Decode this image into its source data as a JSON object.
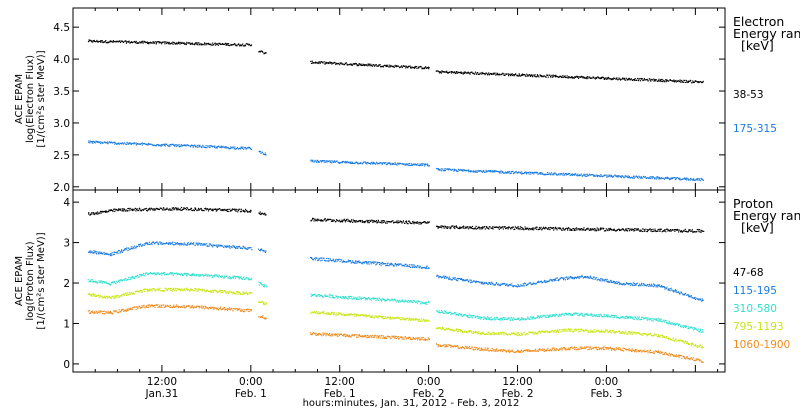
{
  "chart_data": {
    "type": "scatter",
    "xlabel": "hours:minutes, Jan. 31, 2012 - Feb.  3, 2012",
    "x_ticks": [
      {
        "top": "12:00",
        "bottom": "Jan.31",
        "hour": 12
      },
      {
        "top": "0:00",
        "bottom": "Feb. 1",
        "hour": 24
      },
      {
        "top": "12:00",
        "bottom": "Feb. 1",
        "hour": 36
      },
      {
        "top": "0:00",
        "bottom": "Feb. 2",
        "hour": 48
      },
      {
        "top": "12:00",
        "bottom": "Feb. 2",
        "hour": 60
      },
      {
        "top": "0:00",
        "bottom": "Feb. 3",
        "hour": 72
      }
    ],
    "xlim_hours": [
      0,
      88
    ],
    "panels": [
      {
        "id": "electron",
        "ylabel": [
          "ACE EPAM",
          "log(Electron Flux)",
          "[1/(cm²s ster MeV)]"
        ],
        "ylim": [
          1.95,
          4.8
        ],
        "yticks": [
          2.0,
          2.5,
          3.0,
          3.5,
          4.0,
          4.5
        ],
        "ytick_labels": [
          "2.0",
          "2.5",
          "3.0",
          "3.5",
          "4.0",
          "4.5"
        ],
        "legend_title": [
          "Electron",
          "Energy ranges",
          "[keV]"
        ],
        "series": [
          {
            "name": "38-53",
            "color": "#000000",
            "segments": [
              [
                [
                  2,
                  4.29
                ],
                [
                  24,
                  4.23
                ]
              ],
              [
                [
                  25,
                  4.14
                ],
                [
                  26,
                  4.09
                ]
              ],
              [
                [
                  32,
                  3.96
                ],
                [
                  48,
                  3.87
                ]
              ],
              [
                [
                  49,
                  3.81
                ],
                [
                  85,
                  3.65
                ]
              ]
            ]
          },
          {
            "name": "175-315",
            "color": "#1a7be0",
            "segments": [
              [
                [
                  2,
                  2.71
                ],
                [
                  24,
                  2.61
                ]
              ],
              [
                [
                  25,
                  2.56
                ],
                [
                  26,
                  2.52
                ]
              ],
              [
                [
                  32,
                  2.41
                ],
                [
                  48,
                  2.35
                ]
              ],
              [
                [
                  49,
                  2.28
                ],
                [
                  85,
                  2.12
                ]
              ]
            ]
          }
        ]
      },
      {
        "id": "proton",
        "ylabel": [
          "ACE EPAM",
          "log(Proton Flux)",
          "[1/(cm²s ster MeV)]"
        ],
        "ylim": [
          -0.2,
          4.3
        ],
        "yticks": [
          0,
          1,
          2,
          3,
          4
        ],
        "ytick_labels": [
          "0",
          "1",
          "2",
          "3",
          "4"
        ],
        "legend_title": [
          "Proton",
          "Energy ranges",
          "[keV]"
        ],
        "series": [
          {
            "name": "47-68",
            "color": "#000000",
            "segments": [
              [
                [
                  2,
                  3.72
                ],
                [
                  6,
                  3.82
                ],
                [
                  14,
                  3.85
                ],
                [
                  24,
                  3.8
                ]
              ],
              [
                [
                  25,
                  3.74
                ],
                [
                  26,
                  3.72
                ]
              ],
              [
                [
                  32,
                  3.58
                ],
                [
                  48,
                  3.5
                ]
              ],
              [
                [
                  49,
                  3.4
                ],
                [
                  85,
                  3.3
                ]
              ]
            ]
          },
          {
            "name": "115-195",
            "color": "#1a7be0",
            "segments": [
              [
                [
                  2,
                  2.8
                ],
                [
                  5,
                  2.72
                ],
                [
                  10,
                  3.0
                ],
                [
                  16,
                  2.98
                ],
                [
                  24,
                  2.87
                ]
              ],
              [
                [
                  25,
                  2.85
                ],
                [
                  26,
                  2.8
                ]
              ],
              [
                [
                  32,
                  2.62
                ],
                [
                  48,
                  2.4
                ]
              ],
              [
                [
                  49,
                  2.18
                ],
                [
                  55,
                  2.02
                ],
                [
                  60,
                  1.95
                ],
                [
                  65,
                  2.1
                ],
                [
                  69,
                  2.18
                ],
                [
                  74,
                  2.0
                ],
                [
                  79,
                  1.95
                ],
                [
                  85,
                  1.58
                ]
              ]
            ]
          },
          {
            "name": "310-580",
            "color": "#2fe0cf",
            "segments": [
              [
                [
                  2,
                  2.08
                ],
                [
                  5,
                  2.0
                ],
                [
                  10,
                  2.25
                ],
                [
                  16,
                  2.22
                ],
                [
                  24,
                  2.12
                ]
              ],
              [
                [
                  25,
                  2.0
                ],
                [
                  26,
                  1.93
                ]
              ],
              [
                [
                  32,
                  1.72
                ],
                [
                  48,
                  1.52
                ]
              ],
              [
                [
                  49,
                  1.32
                ],
                [
                  55,
                  1.15
                ],
                [
                  60,
                  1.12
                ],
                [
                  67,
                  1.25
                ],
                [
                  72,
                  1.2
                ],
                [
                  79,
                  1.1
                ],
                [
                  85,
                  0.82
                ]
              ]
            ]
          },
          {
            "name": "795-1193",
            "color": "#c8e612",
            "segments": [
              [
                [
                  2,
                  1.73
                ],
                [
                  5,
                  1.65
                ],
                [
                  10,
                  1.85
                ],
                [
                  16,
                  1.85
                ],
                [
                  24,
                  1.75
                ]
              ],
              [
                [
                  25,
                  1.55
                ],
                [
                  26,
                  1.5
                ]
              ],
              [
                [
                  32,
                  1.3
                ],
                [
                  48,
                  1.08
                ]
              ],
              [
                [
                  49,
                  0.9
                ],
                [
                  55,
                  0.78
                ],
                [
                  60,
                  0.75
                ],
                [
                  67,
                  0.85
                ],
                [
                  72,
                  0.82
                ],
                [
                  79,
                  0.72
                ],
                [
                  85,
                  0.42
                ]
              ]
            ]
          },
          {
            "name": "1060-1900",
            "color": "#f08c1e",
            "segments": [
              [
                [
                  2,
                  1.3
                ],
                [
                  5,
                  1.28
                ],
                [
                  10,
                  1.45
                ],
                [
                  16,
                  1.43
                ],
                [
                  24,
                  1.33
                ]
              ],
              [
                [
                  25,
                  1.2
                ],
                [
                  26,
                  1.15
                ]
              ],
              [
                [
                  32,
                  0.76
                ],
                [
                  48,
                  0.63
                ]
              ],
              [
                [
                  49,
                  0.48
                ],
                [
                  55,
                  0.38
                ],
                [
                  60,
                  0.32
                ],
                [
                  67,
                  0.4
                ],
                [
                  72,
                  0.4
                ],
                [
                  79,
                  0.3
                ],
                [
                  85,
                  0.08
                ]
              ]
            ]
          }
        ]
      }
    ]
  }
}
